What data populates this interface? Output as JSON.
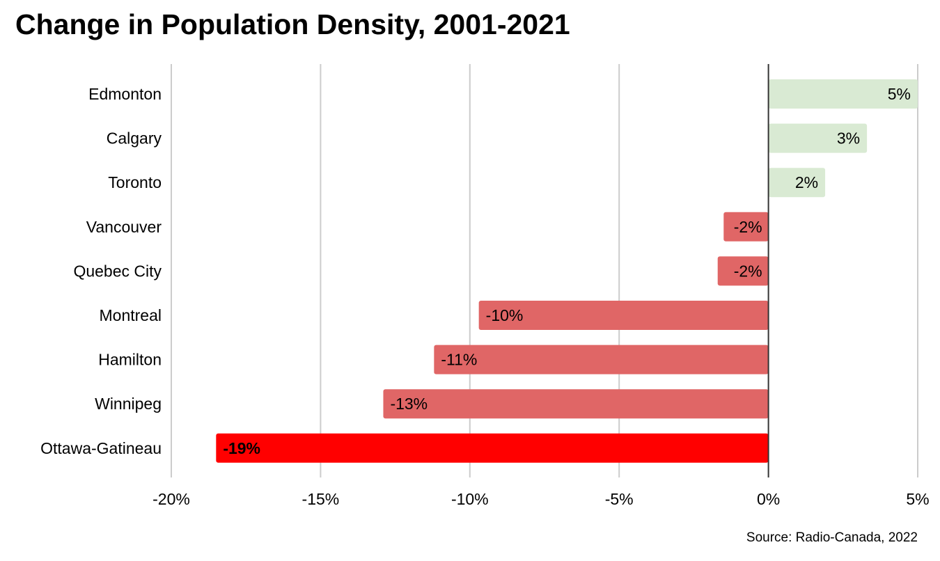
{
  "chart_data": {
    "type": "bar",
    "orientation": "horizontal",
    "title": "Change in Population Density, 2001-2021",
    "source": "Source: Radio-Canada, 2022",
    "categories": [
      "Edmonton",
      "Calgary",
      "Toronto",
      "Vancouver",
      "Quebec City",
      "Montreal",
      "Hamilton",
      "Winnipeg",
      "Ottawa-Gatineau"
    ],
    "values": [
      5.0,
      3.3,
      1.9,
      -1.5,
      -1.7,
      -9.7,
      -11.2,
      -12.9,
      -18.5
    ],
    "data_labels": [
      "5%",
      "3%",
      "2%",
      "-2%",
      "-2%",
      "-10%",
      "-11%",
      "-13%",
      "-19%"
    ],
    "xlim": [
      -20,
      5
    ],
    "x_ticks": [
      -20,
      -15,
      -10,
      -5,
      0,
      5
    ],
    "x_tick_labels": [
      "-20%",
      "-15%",
      "-10%",
      "-5%",
      "0%",
      "5%"
    ],
    "xlabel": "",
    "ylabel": "",
    "grid": "vertical",
    "legend": "none",
    "colors": {
      "positive": "#d9ead3",
      "negative": "#e06666",
      "highlight": "#ff0000",
      "grid": "#cccccc",
      "zero_line": "#333333"
    },
    "highlight_index": 8
  }
}
